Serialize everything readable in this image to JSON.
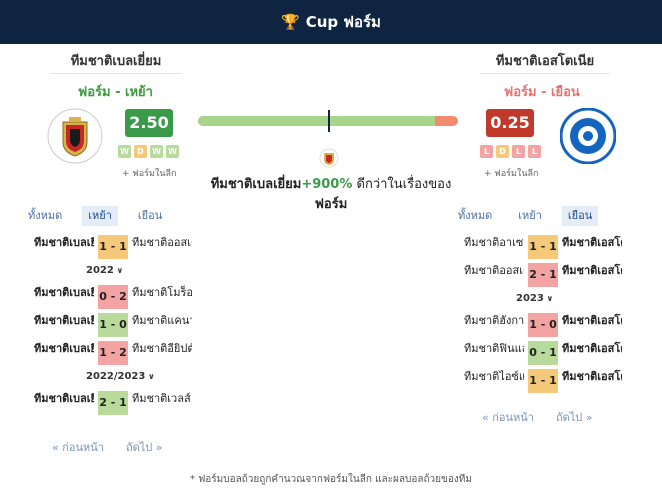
{
  "header": {
    "title": "Cup ฟอร์ม",
    "icon": "trophy-icon"
  },
  "left_team": {
    "name": "ทีมชาติเบลเยี่ยม",
    "form_label": "ฟอร์ม - เหย้า",
    "rating": "2.50",
    "dots": [
      "W",
      "D",
      "W",
      "W"
    ],
    "league_form": "+ ฟอร์มในลีก",
    "color": "#3a9a4a"
  },
  "right_team": {
    "name": "ทีมชาติเอสโตเนีย",
    "form_label": "ฟอร์ม - เยือน",
    "rating": "0.25",
    "dots": [
      "L",
      "D",
      "L",
      "L"
    ],
    "league_form": "+ ฟอร์มในลีก",
    "color": "#c0392b"
  },
  "comparison": {
    "left_share": 0.91,
    "team": "ทีมชาติเบลเยี่ยม",
    "pct": "+900%",
    "text": " ดีกว่าในเรื่องของ",
    "suffix": "ฟอร์ม"
  },
  "tabs": {
    "left": [
      "ทั้งหมด",
      "เหย้า",
      "เยือน"
    ],
    "left_active": 1,
    "right": [
      "ทั้งหมด",
      "เหย้า",
      "เยือน"
    ],
    "right_active": 2
  },
  "left_matches": {
    "groups": [
      {
        "season": "",
        "matches": [
          {
            "home": "ทีมชาติเบลเยี่ยม",
            "score": "1 - 1",
            "away": "ทีมชาติออสเตรีย",
            "result": "d"
          }
        ]
      },
      {
        "season": "2022",
        "matches": [
          {
            "home": "ทีมชาติเบลเยี่ยม",
            "score": "0 - 2",
            "away": "ทีมชาติโมร็อกโก",
            "result": "l"
          },
          {
            "home": "ทีมชาติเบลเยี่ยม",
            "score": "1 - 0",
            "away": "ทีมชาติแคนาดา",
            "result": "w"
          },
          {
            "home": "ทีมชาติเบลเยี่ยม",
            "score": "1 - 2",
            "away": "ทีมชาติอียิปต์",
            "result": "l"
          }
        ]
      },
      {
        "season": "2022/2023",
        "matches": [
          {
            "home": "ทีมชาติเบลเยี่ยม",
            "score": "2 - 1",
            "away": "ทีมชาติเวลส์",
            "result": "w"
          }
        ]
      }
    ]
  },
  "right_matches": {
    "groups": [
      {
        "season": "",
        "matches": [
          {
            "home": "ทีมชาติอาเซอร์ไบจาน",
            "score": "1 - 1",
            "away": "ทีมชาติเอสโตเนีย",
            "result": "d"
          },
          {
            "home": "ทีมชาติออสเตรีย",
            "score": "2 - 1",
            "away": "ทีมชาติเอสโตเนีย",
            "result": "l"
          }
        ]
      },
      {
        "season": "2023",
        "matches": [
          {
            "home": "ทีมชาติฮังการี",
            "score": "1 - 0",
            "away": "ทีมชาติเอสโตเนีย",
            "result": "l"
          },
          {
            "home": "ทีมชาติฟินแลนด์",
            "score": "0 - 1",
            "away": "ทีมชาติเอสโตเนีย",
            "result": "w"
          },
          {
            "home": "ทีมชาติไอซ์แลนด์",
            "score": "1 - 1",
            "away": "ทีมชาติเอสโตเนีย",
            "result": "d"
          }
        ]
      }
    ]
  },
  "pager": {
    "prev": "« ก่อนหน้า",
    "next": "ถัดไป »"
  },
  "footnote": "* ฟอร์มบอลถ้วยถูกคำนวณจากฟอร์มในลีก และผลบอลถ้วยของทีม"
}
